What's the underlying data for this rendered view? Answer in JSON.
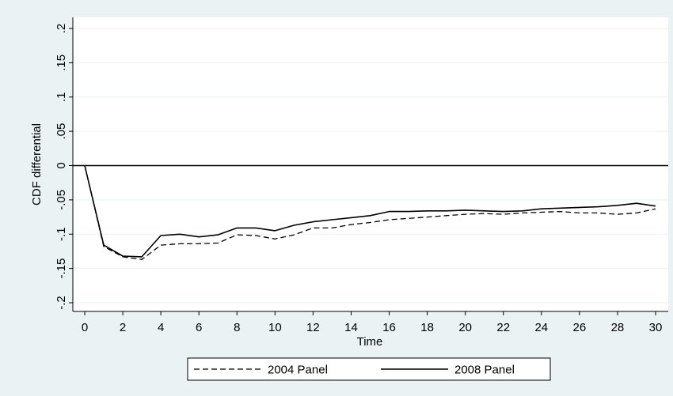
{
  "colors": {
    "outer_background": "#eaf2f3",
    "plot_background": "#ffffff",
    "gridline": "#eaf2f3",
    "series": "#000000"
  },
  "chart_data": {
    "type": "line",
    "title": "",
    "xlabel": "Time",
    "ylabel": "CDF differential",
    "xlim": [
      0,
      30
    ],
    "ylim": [
      -0.2,
      0.2
    ],
    "x_ticks": [
      "0",
      "2",
      "4",
      "6",
      "8",
      "10",
      "12",
      "14",
      "16",
      "18",
      "20",
      "22",
      "24",
      "26",
      "28",
      "30"
    ],
    "y_ticks": [
      ".2",
      ".15",
      ".1",
      ".05",
      "0",
      "-.05",
      "-.1",
      "-.15",
      "-.2"
    ],
    "y_tick_values": [
      0.2,
      0.15,
      0.1,
      0.05,
      0,
      -0.05,
      -0.1,
      -0.15,
      -0.2
    ],
    "grid": true,
    "reference_line_y": 0,
    "legend_position": "bottom",
    "x": [
      0,
      1,
      2,
      3,
      4,
      5,
      6,
      7,
      8,
      9,
      10,
      11,
      12,
      13,
      14,
      15,
      16,
      17,
      18,
      19,
      20,
      21,
      22,
      23,
      24,
      25,
      26,
      27,
      28,
      29,
      30
    ],
    "series": [
      {
        "name": "2004 Panel",
        "style": "dashed",
        "values": [
          0,
          -0.118,
          -0.133,
          -0.137,
          -0.116,
          -0.114,
          -0.114,
          -0.113,
          -0.101,
          -0.102,
          -0.107,
          -0.101,
          -0.091,
          -0.091,
          -0.086,
          -0.083,
          -0.079,
          -0.077,
          -0.075,
          -0.073,
          -0.071,
          -0.07,
          -0.071,
          -0.069,
          -0.068,
          -0.067,
          -0.069,
          -0.069,
          -0.071,
          -0.069,
          -0.063
        ]
      },
      {
        "name": "2008 Panel",
        "style": "solid",
        "values": [
          0,
          -0.116,
          -0.132,
          -0.133,
          -0.102,
          -0.1,
          -0.104,
          -0.101,
          -0.091,
          -0.091,
          -0.095,
          -0.087,
          -0.082,
          -0.079,
          -0.076,
          -0.073,
          -0.067,
          -0.067,
          -0.066,
          -0.066,
          -0.065,
          -0.066,
          -0.067,
          -0.066,
          -0.063,
          -0.062,
          -0.061,
          -0.06,
          -0.058,
          -0.055,
          -0.059
        ]
      }
    ]
  }
}
